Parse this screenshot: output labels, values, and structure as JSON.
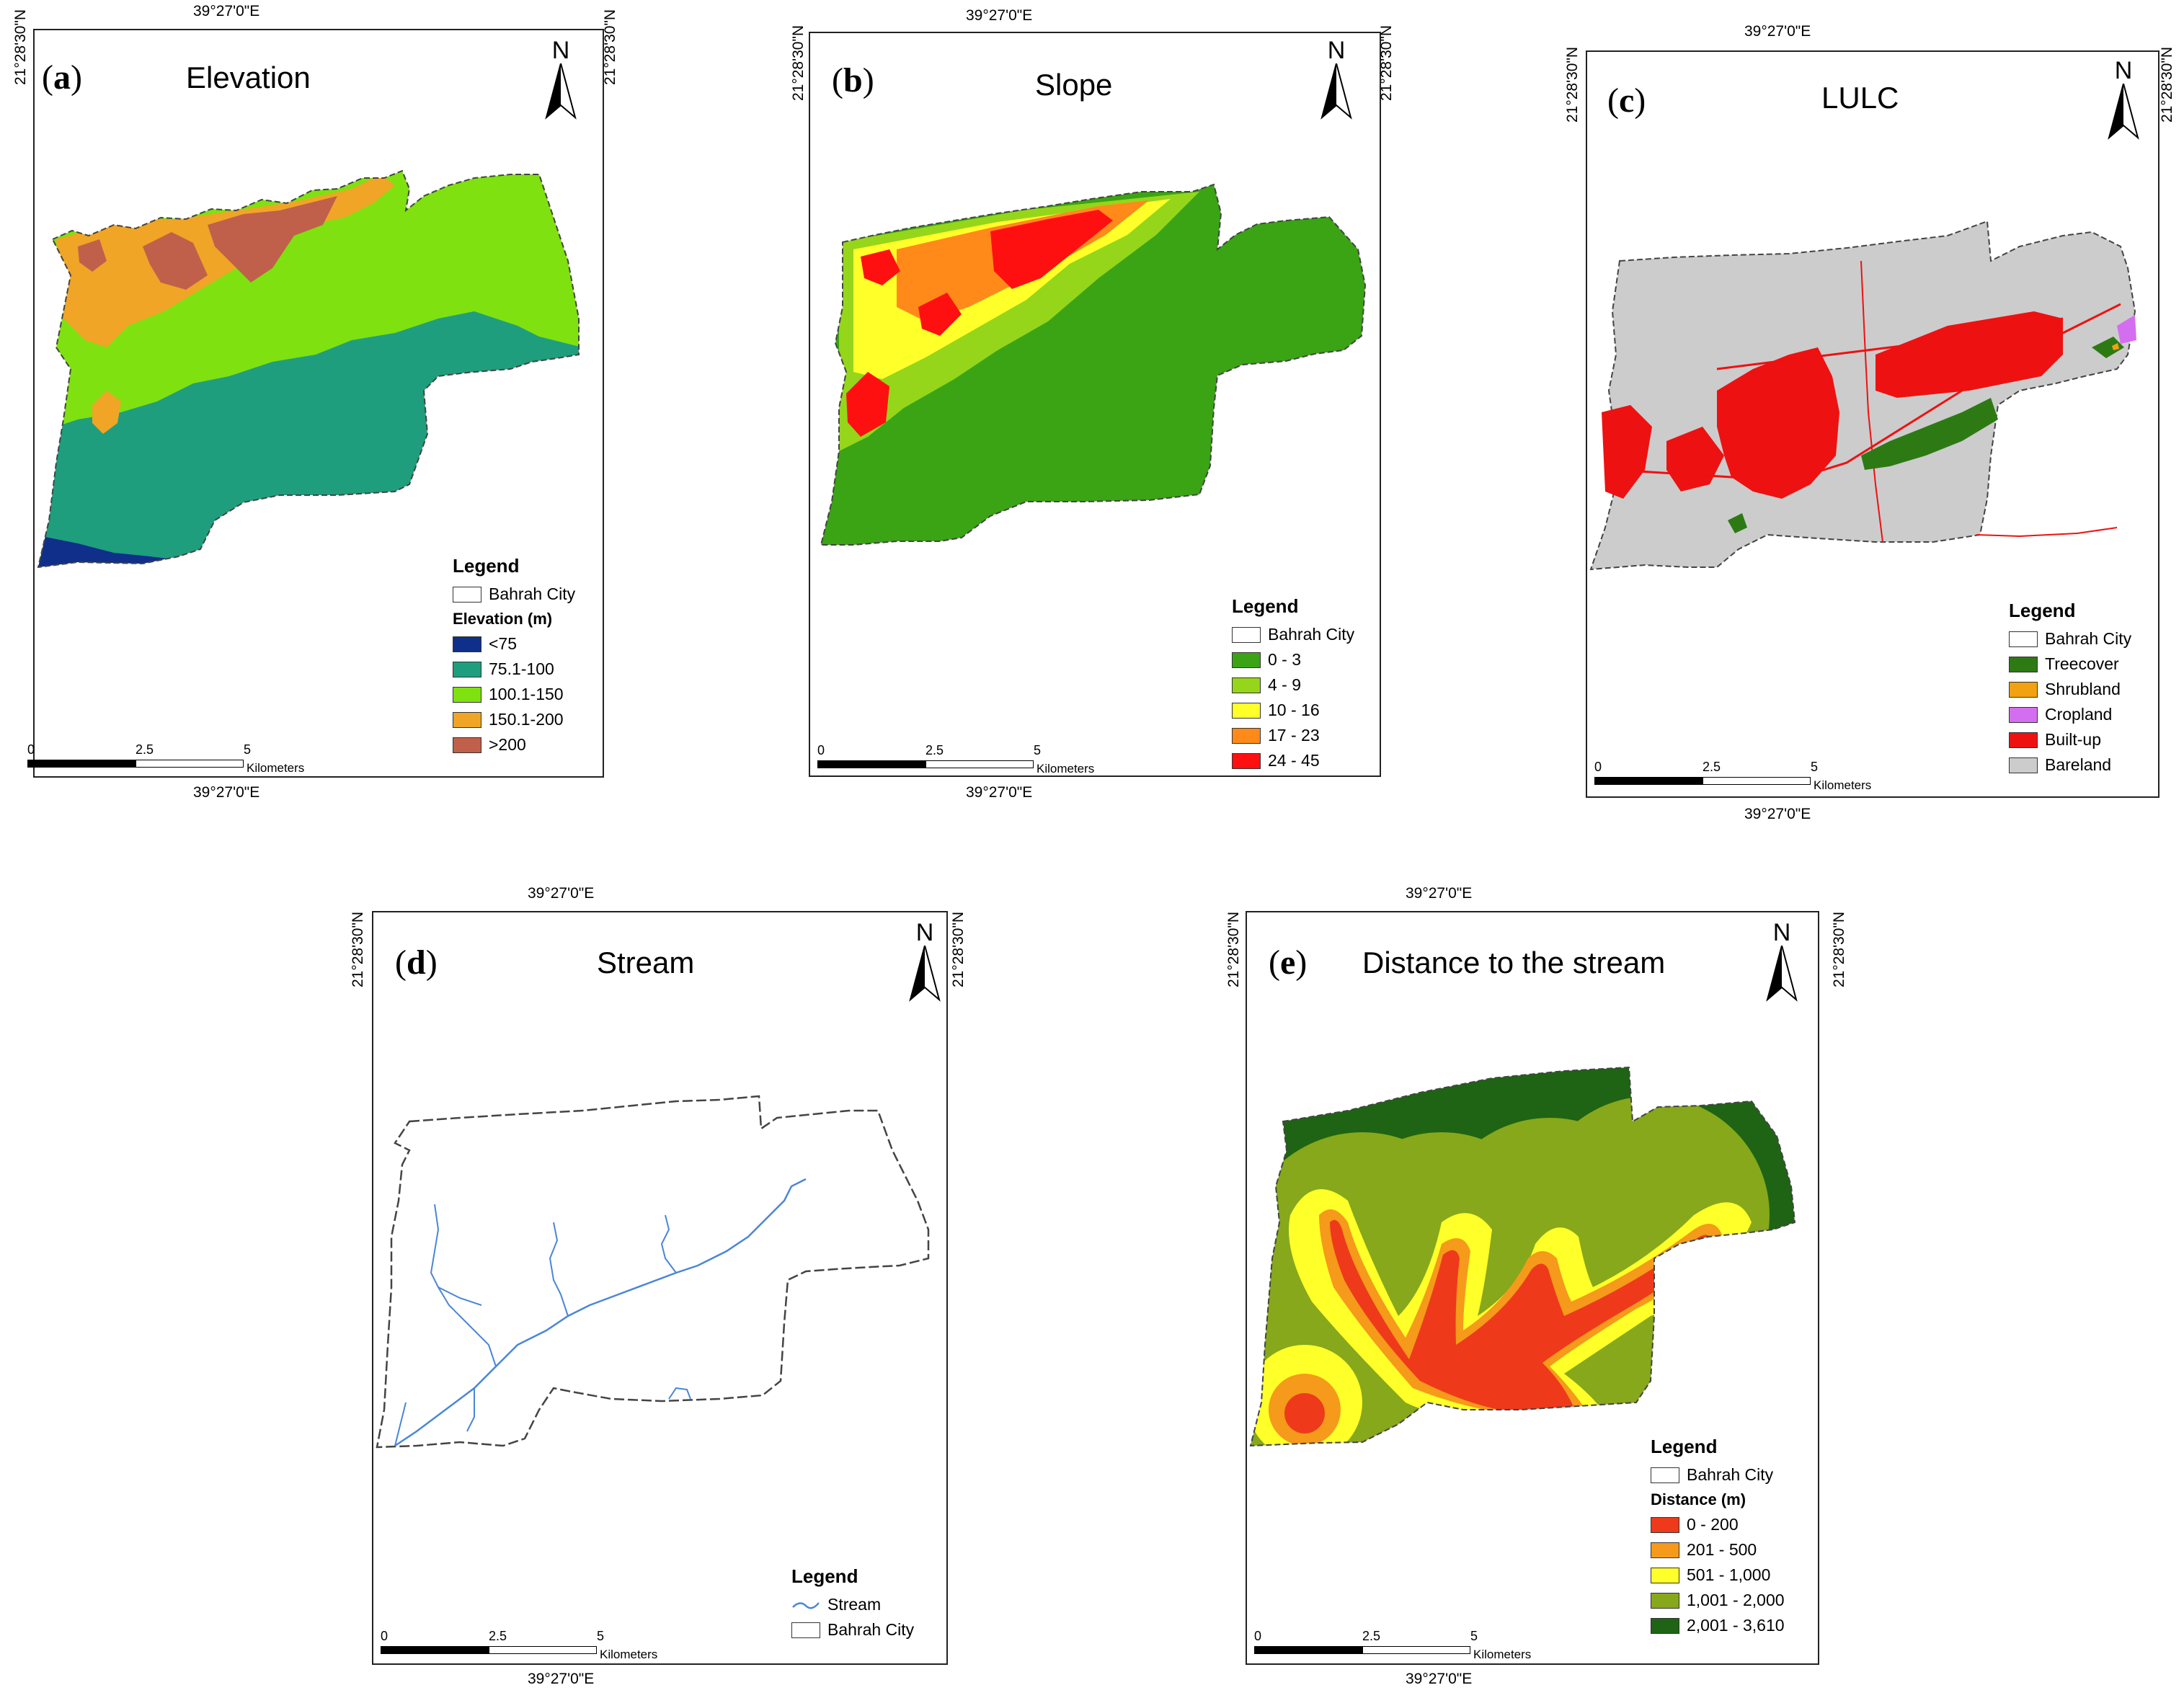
{
  "coords": {
    "lon": "39°27'0\"E",
    "lat": "21°28'30\"N"
  },
  "north": "N",
  "scale": {
    "ticks": [
      "0",
      "2.5",
      "5"
    ],
    "unit": "Kilometers"
  },
  "legend_title": "Legend",
  "boundary_label": "Bahrah City",
  "panels": {
    "a": {
      "label": "a",
      "title": "Elevation",
      "subtitle": "Elevation (m)",
      "classes": [
        {
          "label": "<75",
          "color": "#0f2f8a"
        },
        {
          "label": "75.1-100",
          "color": "#1f9e7e"
        },
        {
          "label": "100.1-150",
          "color": "#7fe10f"
        },
        {
          "label": "150.1-200",
          "color": "#f0a526"
        },
        {
          "label": ">200",
          "color": "#c0604a"
        }
      ]
    },
    "b": {
      "label": "b",
      "title": "Slope",
      "classes": [
        {
          "label": "0 - 3",
          "color": "#3aa414"
        },
        {
          "label": "4 - 9",
          "color": "#95d61a"
        },
        {
          "label": "10 - 16",
          "color": "#ffff2a"
        },
        {
          "label": "17 - 23",
          "color": "#ff8a1a"
        },
        {
          "label": "24 - 45",
          "color": "#ff1010"
        }
      ]
    },
    "c": {
      "label": "c",
      "title": "LULC",
      "classes": [
        {
          "label": "Treecover",
          "color": "#2d7a14"
        },
        {
          "label": "Shrubland",
          "color": "#f2a111"
        },
        {
          "label": "Cropland",
          "color": "#d46ef0"
        },
        {
          "label": "Built-up",
          "color": "#ee1111"
        },
        {
          "label": "Bareland",
          "color": "#cccccc"
        }
      ]
    },
    "d": {
      "label": "d",
      "title": "Stream",
      "stream_label": "Stream",
      "stream_color": "#4a86d8"
    },
    "e": {
      "label": "e",
      "title": "Distance to the stream",
      "subtitle": "Distance (m)",
      "classes": [
        {
          "label": "0 - 200",
          "color": "#ee3a1a"
        },
        {
          "label": "201 - 500",
          "color": "#f59a1a"
        },
        {
          "label": "501 - 1,000",
          "color": "#ffff2a"
        },
        {
          "label": "1,001 - 2,000",
          "color": "#86a81a"
        },
        {
          "label": "2,001 - 3,610",
          "color": "#1e6414"
        }
      ]
    }
  }
}
